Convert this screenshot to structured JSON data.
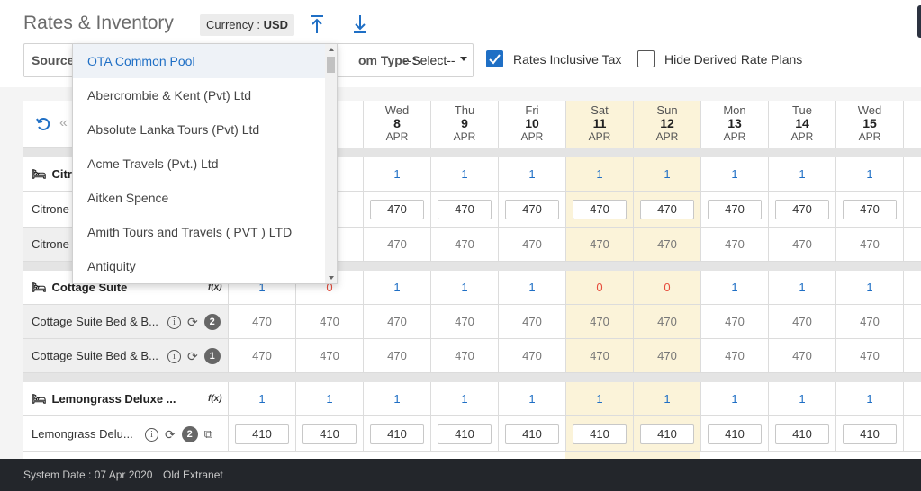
{
  "header": {
    "title": "Rates & Inventory",
    "currency_label": "Currency :",
    "currency_value": "USD",
    "source_label": "Source",
    "room_type_label": "om Type :",
    "room_type_value": "--Select--",
    "rates_inclusive_tax": {
      "label": "Rates Inclusive Tax",
      "checked": true
    },
    "hide_derived": {
      "label": "Hide Derived Rate Plans",
      "checked": false
    }
  },
  "source_dropdown": {
    "items": [
      "OTA Common Pool",
      "Abercrombie & Kent (Pvt) Ltd",
      "Absolute Lanka Tours (Pvt) Ltd",
      "Acme Travels (Pvt.) Ltd",
      "Aitken Spence",
      "Amith Tours and Travels ( PVT ) LTD",
      "Antiquity"
    ],
    "selected": "OTA Common Pool"
  },
  "calendar": {
    "partial_col": {
      "dn": "",
      "dd": "",
      "dm": ""
    },
    "days": [
      {
        "dn": "Wed",
        "dd": "8",
        "dm": "APR",
        "weekend": false
      },
      {
        "dn": "Thu",
        "dd": "9",
        "dm": "APR",
        "weekend": false
      },
      {
        "dn": "Fri",
        "dd": "10",
        "dm": "APR",
        "weekend": false
      },
      {
        "dn": "Sat",
        "dd": "11",
        "dm": "APR",
        "weekend": true
      },
      {
        "dn": "Sun",
        "dd": "12",
        "dm": "APR",
        "weekend": true
      },
      {
        "dn": "Mon",
        "dd": "13",
        "dm": "APR",
        "weekend": false
      },
      {
        "dn": "Tue",
        "dd": "14",
        "dm": "APR",
        "weekend": false
      },
      {
        "dn": "Wed",
        "dd": "15",
        "dm": "APR",
        "weekend": false
      }
    ]
  },
  "rows": {
    "citrone_head": {
      "label": "Citro",
      "values": [
        "1",
        "1",
        "1",
        "1",
        "1",
        "1",
        "1",
        "1"
      ]
    },
    "citrone_1": {
      "label": "Citrone",
      "values": [
        "470",
        "470",
        "470",
        "470",
        "470",
        "470",
        "470",
        "470"
      ]
    },
    "citrone_2": {
      "label": "Citrone",
      "values": [
        "470",
        "470",
        "470",
        "470",
        "470",
        "470",
        "470",
        "470"
      ]
    },
    "cottage_head": {
      "label": "Cottage Suite",
      "fx": "f(x)",
      "first": "1",
      "second": "0",
      "values": [
        "1",
        "1",
        "1",
        "0",
        "0",
        "1",
        "1",
        "1"
      ]
    },
    "cottage_1": {
      "label": "Cottage Suite Bed & B...",
      "badge": "2",
      "first": "470",
      "second": "470",
      "values": [
        "470",
        "470",
        "470",
        "470",
        "470",
        "470",
        "470",
        "470"
      ]
    },
    "cottage_2": {
      "label": "Cottage Suite Bed & B...",
      "badge": "1",
      "first": "470",
      "second": "470",
      "values": [
        "470",
        "470",
        "470",
        "470",
        "470",
        "470",
        "470",
        "470"
      ]
    },
    "lemon_head": {
      "label": "Lemongrass Deluxe ...",
      "fx": "f(x)",
      "first": "1",
      "second": "1",
      "values": [
        "1",
        "1",
        "1",
        "1",
        "1",
        "1",
        "1",
        "1"
      ]
    },
    "lemon_1": {
      "label": "Lemongrass Delu...",
      "badge": "2",
      "first": "410",
      "second": "410",
      "values": [
        "410",
        "410",
        "410",
        "410",
        "410",
        "410",
        "410",
        "410"
      ]
    }
  },
  "footer": {
    "system_date": "System Date : 07 Apr 2020",
    "old_extranet": "Old Extranet"
  }
}
